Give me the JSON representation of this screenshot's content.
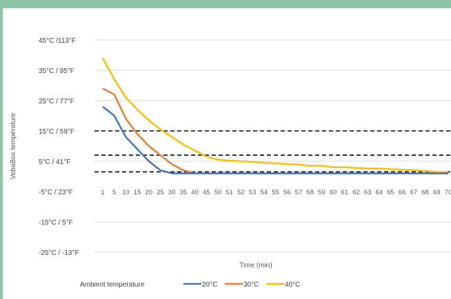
{
  "chart_data": {
    "type": "line",
    "title": "",
    "xlabel": "Time (min)",
    "ylabel": "VebaBox temperature",
    "y_tick_labels": [
      "45°C /113°F",
      "35°C / 95°F",
      "25°C / 77°F",
      "15°C / 59°F",
      "5°C / 41°F",
      "-5°C / 23°F",
      "-15°C / 5°F",
      "-25°C / -13°F"
    ],
    "y_ticks": [
      45,
      35,
      25,
      15,
      5,
      -5,
      -15,
      -25
    ],
    "ylim": [
      -25,
      45
    ],
    "categories": [
      "1",
      "5",
      "10",
      "15",
      "20",
      "25",
      "30",
      "35",
      "40",
      "45",
      "50",
      "51",
      "52",
      "53",
      "54",
      "55",
      "56",
      "57",
      "58",
      "59",
      "60",
      "61",
      "62",
      "63",
      "64",
      "65",
      "66",
      "67",
      "68",
      "69",
      "70"
    ],
    "grid": true,
    "legend_title": "Ambient temperature",
    "legend_position": "bottom",
    "series": [
      {
        "name": "20°C",
        "color": "#4472c4",
        "values": [
          23,
          20,
          13,
          9,
          5,
          2,
          1,
          1,
          1,
          1,
          1,
          1,
          1,
          1,
          1,
          1,
          1,
          1,
          1,
          1,
          1,
          1,
          1,
          1,
          1,
          1,
          1,
          1,
          1,
          1,
          1
        ]
      },
      {
        "name": "30°C",
        "color": "#ed7d31",
        "values": [
          29,
          27,
          19,
          14,
          10,
          7,
          4,
          2,
          1,
          1,
          1,
          1,
          1,
          1,
          1,
          1,
          1,
          1,
          1,
          1,
          1,
          1,
          1,
          1,
          1,
          1,
          1,
          1,
          1,
          1,
          1
        ]
      },
      {
        "name": "40°C",
        "color": "#ffc000",
        "values": [
          39,
          32,
          26,
          22,
          18.5,
          15.5,
          13,
          10.5,
          8.5,
          6.5,
          5.5,
          5.2,
          5,
          4.8,
          4.5,
          4.3,
          4.1,
          3.9,
          3.5,
          3.5,
          3,
          3,
          2.8,
          2.6,
          2.6,
          2.4,
          2.2,
          2.1,
          1.8,
          1.5,
          1.3
        ]
      }
    ],
    "reference_lines": [
      15,
      7,
      1.5
    ]
  }
}
